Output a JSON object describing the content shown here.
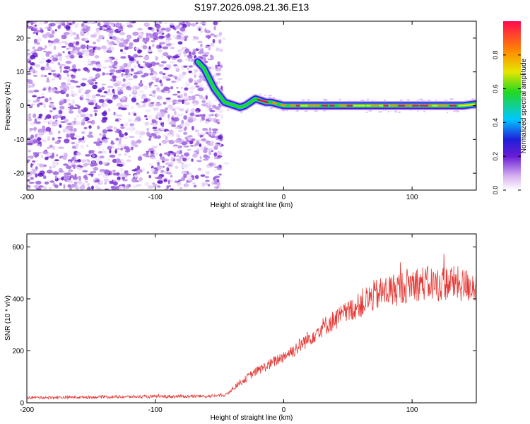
{
  "title": "S197.2026.098.21.36.E13",
  "chart_data": [
    {
      "type": "heatmap",
      "xlabel": "Height of straight line (km)",
      "ylabel": "Frequency (Hz)",
      "xlim": [
        -200,
        150
      ],
      "ylim": [
        -25,
        25
      ],
      "xticks": [
        -200,
        -100,
        0,
        100
      ],
      "xtick_labels": [
        "-200",
        "-100",
        "0",
        "100"
      ],
      "yticks": [
        -20,
        -10,
        0,
        10,
        20
      ],
      "ytick_labels": [
        "-20",
        "-10",
        "0",
        "10",
        "20"
      ],
      "noise_region_x": [
        -200,
        -48
      ],
      "trace": {
        "x": [
          -67,
          -62,
          -58,
          -54,
          -50,
          -46,
          -42,
          -38,
          -34,
          -30,
          -26,
          -22,
          -18,
          -14,
          -10,
          -5,
          0,
          10,
          20,
          30,
          40,
          50,
          60,
          70,
          80,
          90,
          100,
          110,
          120,
          130,
          140,
          150
        ],
        "y": [
          13,
          11,
          8,
          5,
          3,
          1,
          0.5,
          0,
          -0.5,
          0,
          1,
          2,
          1.5,
          1,
          1,
          0.5,
          0,
          0,
          0,
          0,
          0,
          0,
          0,
          0,
          0,
          0,
          0,
          0,
          0,
          0,
          0,
          0.5
        ]
      },
      "colorbar": {
        "label": "Normalized spectral amplitude",
        "range": [
          0,
          1
        ],
        "ticks": [
          0.0,
          0.2,
          0.4,
          0.6,
          0.8
        ],
        "tick_labels": [
          "0.0",
          "0.2",
          "0.4",
          "0.6",
          "0.8"
        ]
      },
      "grid": false
    },
    {
      "type": "line",
      "xlabel": "Height of straight line (km)",
      "ylabel": "SNR (10 * v/v)",
      "xlim": [
        -200,
        150
      ],
      "ylim": [
        0,
        650
      ],
      "xticks": [
        -200,
        -100,
        0,
        100
      ],
      "xtick_labels": [
        "-200",
        "-100",
        "0",
        "100"
      ],
      "yticks": [
        0,
        200,
        400,
        600
      ],
      "ytick_labels": [
        "0",
        "200",
        "400",
        "600"
      ],
      "color": "#e53935",
      "series": [
        {
          "x": [
            -200,
            -150,
            -100,
            -60,
            -45,
            -40,
            -35,
            -30,
            -25,
            -20,
            -10,
            0,
            10,
            20,
            30,
            40,
            50,
            60,
            70,
            80,
            90,
            100,
            110,
            120,
            130,
            140,
            150
          ],
          "y": [
            20,
            22,
            24,
            25,
            30,
            55,
            75,
            90,
            110,
            125,
            150,
            180,
            210,
            250,
            290,
            320,
            350,
            380,
            410,
            430,
            440,
            460,
            460,
            455,
            465,
            450,
            455
          ]
        }
      ],
      "grid": false
    }
  ]
}
